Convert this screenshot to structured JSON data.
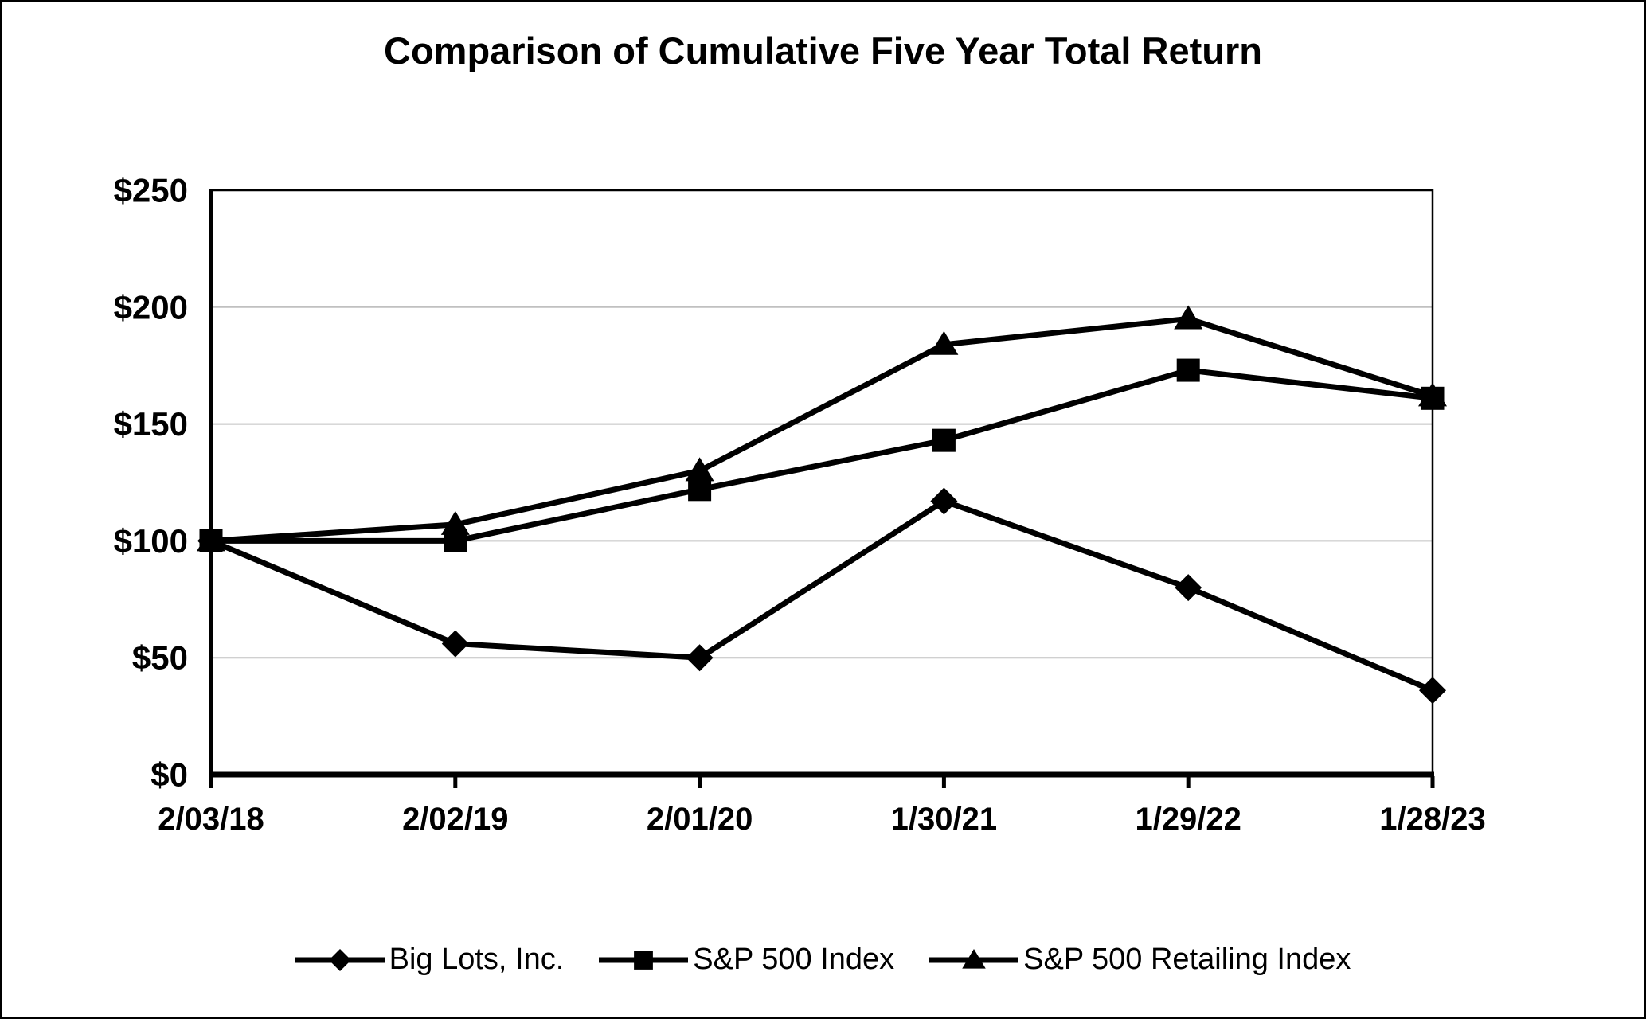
{
  "page": {
    "background_color": "#ffffff",
    "frame_color": "#000000"
  },
  "chart_data": {
    "type": "line",
    "title": "Comparison of Cumulative Five Year Total Return",
    "xlabel": "",
    "ylabel": "",
    "categories": [
      "2/03/18",
      "2/02/19",
      "2/01/20",
      "1/30/21",
      "1/29/22",
      "1/28/23"
    ],
    "y_axis": {
      "min": 0,
      "max": 250,
      "step": 50,
      "tick_labels": [
        "$0",
        "$50",
        "$100",
        "$150",
        "$200",
        "$250"
      ]
    },
    "series": [
      {
        "name": "Big Lots, Inc.",
        "marker": "diamond",
        "color": "#000000",
        "values": [
          100,
          56,
          50,
          117,
          80,
          36
        ]
      },
      {
        "name": "S&P 500 Index",
        "marker": "square",
        "color": "#000000",
        "values": [
          100,
          100,
          122,
          143,
          173,
          161
        ]
      },
      {
        "name": "S&P 500 Retailing Index",
        "marker": "triangle",
        "color": "#000000",
        "values": [
          100,
          107,
          130,
          184,
          195,
          162
        ]
      }
    ],
    "grid": {
      "show": true,
      "color": "#c0c0c0"
    },
    "axis_color": "#000000",
    "legend_position": "bottom"
  }
}
